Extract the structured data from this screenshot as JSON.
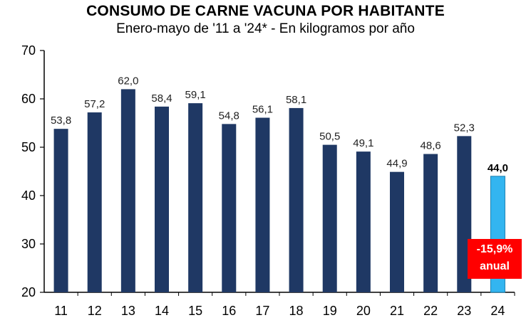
{
  "chart_data": {
    "type": "bar",
    "title": "CONSUMO DE CARNE VACUNA POR HABITANTE",
    "subtitle": "Enero-mayo de '11 a '24* - En kilogramos por año",
    "categories": [
      "11",
      "12",
      "13",
      "14",
      "15",
      "16",
      "17",
      "18",
      "19",
      "20",
      "21",
      "22",
      "23",
      "24"
    ],
    "values": [
      53.8,
      57.2,
      62.0,
      58.4,
      59.1,
      54.8,
      56.1,
      58.1,
      50.5,
      49.1,
      44.9,
      48.6,
      52.3,
      44.0
    ],
    "value_labels": [
      "53,8",
      "57,2",
      "62,0",
      "58,4",
      "59,1",
      "54,8",
      "56,1",
      "58,1",
      "50,5",
      "49,1",
      "44,9",
      "48,6",
      "52,3",
      "44,0"
    ],
    "ylim": [
      20,
      70
    ],
    "yticks": [
      20,
      30,
      40,
      50,
      60,
      70
    ],
    "grid": false,
    "colors": {
      "bar": "#1f3864",
      "highlight_bar": "#33b5f0",
      "badge": "#ff0000"
    },
    "highlight_index": 13,
    "annotation": {
      "line1": "-15,9%",
      "line2": "anual"
    }
  }
}
